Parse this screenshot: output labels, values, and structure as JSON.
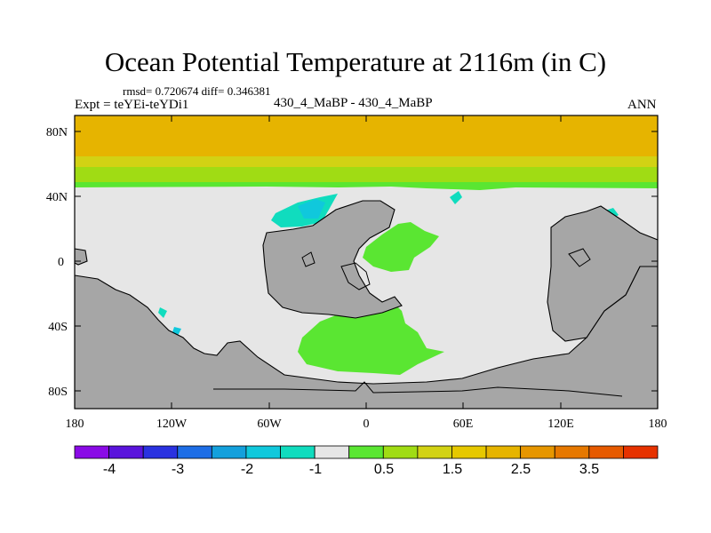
{
  "title": "Ocean Potential Temperature at 2116m (in C)",
  "stats": "rmsd= 0.720674 diff= 0.346381",
  "expt": "Expt = teYEi-teYDi1",
  "case": "430_4_MaBP - 430_4_MaBP",
  "season": "ANN",
  "colors": {
    "land": "#a6a6a6",
    "zero_band": "#e6e6e6",
    "coast": "#000000",
    "levels": [
      "#8a0ae6",
      "#5a14dc",
      "#2a32e0",
      "#1e6ee6",
      "#14a0dc",
      "#10c8dc",
      "#10dcbe",
      "#e6e6e6",
      "#5ae632",
      "#a0dc14",
      "#d2d214",
      "#e6c800",
      "#e6b400",
      "#e69600",
      "#e67800",
      "#e65a00",
      "#e63200"
    ]
  },
  "map": {
    "lon_ticks": [
      "180",
      "120W",
      "60W",
      "0",
      "60E",
      "120E",
      "180"
    ],
    "lat_ticks": [
      "80N",
      "40N",
      "0",
      "40S",
      "80S"
    ]
  },
  "colorbar": {
    "labels": [
      "-4",
      "-3",
      "-2",
      "-1",
      "0.5",
      "1.5",
      "2.5",
      "3.5"
    ]
  }
}
